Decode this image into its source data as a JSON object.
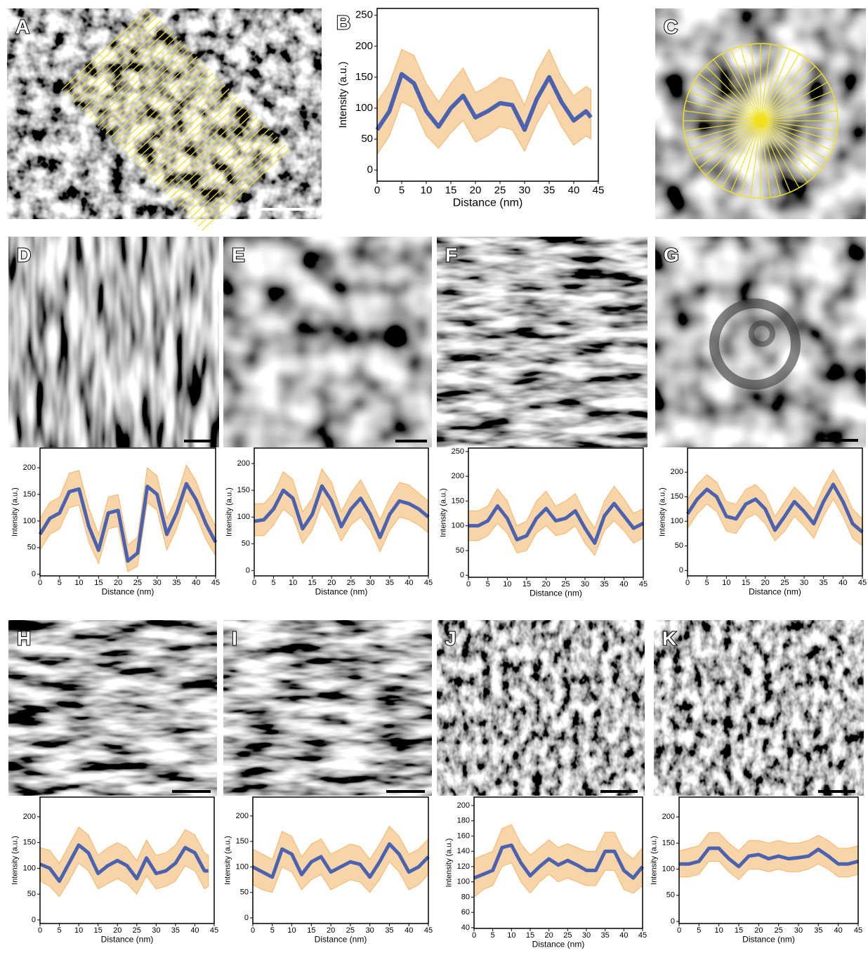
{
  "image_panels": [
    {
      "label": "A"
    },
    {
      "label": "C"
    },
    {
      "label": "D"
    },
    {
      "label": "E"
    },
    {
      "label": "F"
    },
    {
      "label": "G"
    },
    {
      "label": "H"
    },
    {
      "label": "I"
    },
    {
      "label": "J"
    },
    {
      "label": "K"
    }
  ],
  "chart_data": [
    {
      "type": "line",
      "panel": "B",
      "xlabel": "Distance (nm)",
      "ylabel": "Intensity (a.u.)",
      "x": [
        0,
        2.5,
        5,
        7.5,
        10,
        12.5,
        15,
        17.5,
        20,
        22.5,
        25,
        27.5,
        30,
        32.5,
        35,
        37.5,
        40,
        42.5,
        43.5
      ],
      "xlim": [
        0,
        45
      ],
      "xticks": [
        0,
        5,
        10,
        15,
        20,
        25,
        30,
        35,
        40,
        45
      ],
      "ylim": [
        -18,
        261
      ],
      "yticks": [
        0,
        50,
        100,
        150,
        200,
        250
      ],
      "series": [
        {
          "color": "#4a62b0",
          "values": [
            65,
            95,
            155,
            140,
            95,
            70,
            100,
            120,
            85,
            95,
            108,
            105,
            65,
            115,
            150,
            110,
            80,
            95,
            85
          ]
        }
      ],
      "band": {
        "color": "#f0a040",
        "lower": [
          25,
          55,
          110,
          100,
          55,
          35,
          60,
          80,
          45,
          55,
          70,
          65,
          30,
          75,
          110,
          70,
          40,
          55,
          50
        ],
        "upper": [
          110,
          140,
          195,
          185,
          140,
          110,
          140,
          165,
          125,
          135,
          150,
          145,
          105,
          160,
          195,
          150,
          120,
          135,
          130
        ]
      }
    },
    {
      "type": "line",
      "xlabel": "Distance (nm)",
      "ylabel": "Intensity (a.u.)",
      "x": [
        0,
        2.5,
        5,
        7.5,
        10,
        12.5,
        15,
        17.5,
        20,
        22.5,
        25,
        27.5,
        30,
        32.5,
        35,
        37.5,
        40,
        42.5,
        45
      ],
      "xlim": [
        0,
        45
      ],
      "xticks": [
        0,
        5,
        10,
        15,
        20,
        25,
        30,
        35,
        40,
        45
      ],
      "ylim": [
        -3,
        237
      ],
      "yticks": [
        0,
        50,
        100,
        150,
        200
      ],
      "series": [
        {
          "color": "#4a62b0",
          "values": [
            75,
            105,
            115,
            155,
            160,
            90,
            45,
            115,
            120,
            25,
            40,
            165,
            150,
            75,
            115,
            170,
            140,
            95,
            60
          ]
        }
      ],
      "band": {
        "color": "#f0a040",
        "lower": [
          45,
          75,
          85,
          125,
          130,
          60,
          20,
          85,
          90,
          5,
          15,
          135,
          120,
          45,
          85,
          140,
          110,
          65,
          35
        ],
        "upper": [
          105,
          135,
          145,
          190,
          195,
          125,
          75,
          145,
          150,
          55,
          70,
          200,
          185,
          105,
          145,
          205,
          175,
          125,
          90
        ]
      }
    },
    {
      "type": "line",
      "xlabel": "Distance (nm)",
      "ylabel": "Intensity (a.u.)",
      "x": [
        0,
        2.5,
        5,
        7.5,
        10,
        12.5,
        15,
        17.5,
        20,
        22.5,
        25,
        27.5,
        30,
        32.5,
        35,
        37.5,
        40,
        42.5,
        45
      ],
      "xlim": [
        0,
        45
      ],
      "xticks": [
        0,
        5,
        10,
        15,
        20,
        25,
        30,
        35,
        40,
        45
      ],
      "ylim": [
        -10,
        229
      ],
      "yticks": [
        0,
        50,
        100,
        150,
        200
      ],
      "series": [
        {
          "color": "#4a62b0",
          "values": [
            92,
            95,
            115,
            150,
            135,
            78,
            105,
            158,
            130,
            82,
            115,
            135,
            105,
            62,
            105,
            130,
            125,
            115,
            100
          ]
        }
      ],
      "band": {
        "color": "#f0a040",
        "lower": [
          65,
          65,
          85,
          115,
          100,
          50,
          75,
          125,
          95,
          55,
          85,
          100,
          75,
          35,
          75,
          100,
          95,
          85,
          70
        ],
        "upper": [
          125,
          125,
          145,
          185,
          170,
          110,
          135,
          190,
          165,
          110,
          145,
          170,
          135,
          95,
          135,
          165,
          160,
          145,
          130
        ]
      }
    },
    {
      "type": "line",
      "xlabel": "Distance (nm)",
      "ylabel": "Intensity (a.u.)",
      "x": [
        0,
        2.5,
        5,
        7.5,
        10,
        12.5,
        15,
        17.5,
        20,
        22.5,
        25,
        27.5,
        30,
        32.5,
        35,
        37.5,
        40,
        42.5,
        45
      ],
      "xlim": [
        0,
        45
      ],
      "xticks": [
        0,
        5,
        10,
        15,
        20,
        25,
        30,
        35,
        40,
        45
      ],
      "ylim": [
        -4,
        257
      ],
      "yticks": [
        0,
        50,
        100,
        150,
        200,
        250
      ],
      "series": [
        {
          "color": "#4a62b0",
          "values": [
            100,
            100,
            110,
            140,
            115,
            72,
            80,
            115,
            135,
            110,
            115,
            130,
            95,
            65,
            120,
            145,
            120,
            95,
            105
          ]
        }
      ],
      "band": {
        "color": "#f0a040",
        "lower": [
          70,
          70,
          80,
          105,
          85,
          45,
          50,
          85,
          100,
          80,
          85,
          100,
          65,
          40,
          90,
          110,
          90,
          65,
          75
        ],
        "upper": [
          130,
          130,
          140,
          175,
          150,
          100,
          110,
          150,
          170,
          140,
          150,
          165,
          125,
          95,
          150,
          180,
          155,
          125,
          135
        ]
      }
    },
    {
      "type": "line",
      "xlabel": "Distance (nm)",
      "ylabel": "Intensity (a.u.)",
      "x": [
        0,
        2.5,
        5,
        7.5,
        10,
        12.5,
        15,
        17.5,
        20,
        22.5,
        25,
        27.5,
        30,
        32.5,
        35,
        37.5,
        40,
        42.5,
        45
      ],
      "xlim": [
        0,
        45
      ],
      "xticks": [
        0,
        5,
        10,
        15,
        20,
        25,
        30,
        35,
        40,
        45
      ],
      "ylim": [
        -11,
        249
      ],
      "yticks": [
        0,
        50,
        100,
        150,
        200
      ],
      "series": [
        {
          "color": "#4a62b0",
          "values": [
            115,
            145,
            165,
            150,
            110,
            105,
            135,
            145,
            125,
            82,
            110,
            140,
            120,
            95,
            140,
            175,
            140,
            95,
            78
          ]
        }
      ],
      "band": {
        "color": "#f0a040",
        "lower": [
          85,
          115,
          135,
          120,
          80,
          75,
          105,
          115,
          95,
          60,
          80,
          110,
          90,
          65,
          110,
          145,
          110,
          65,
          50
        ],
        "upper": [
          145,
          175,
          195,
          180,
          140,
          135,
          165,
          175,
          155,
          110,
          140,
          170,
          150,
          125,
          170,
          205,
          170,
          125,
          105
        ]
      }
    },
    {
      "type": "line",
      "xlabel": "Distance (nm)",
      "ylabel": "Intensity (a.u.)",
      "x": [
        0,
        2.5,
        5,
        7.5,
        10,
        12.5,
        15,
        17.5,
        20,
        22.5,
        25,
        27.5,
        30,
        32.5,
        35,
        37.5,
        40,
        42.5,
        43.5
      ],
      "xlim": [
        0,
        45
      ],
      "xticks": [
        0,
        5,
        10,
        15,
        20,
        25,
        30,
        35,
        40,
        45
      ],
      "ylim": [
        -7,
        238
      ],
      "yticks": [
        0,
        50,
        100,
        150,
        200
      ],
      "series": [
        {
          "color": "#4a62b0",
          "values": [
            108,
            100,
            75,
            110,
            145,
            130,
            90,
            105,
            115,
            105,
            80,
            120,
            90,
            95,
            110,
            140,
            130,
            95,
            95
          ]
        }
      ],
      "band": {
        "color": "#f0a040",
        "lower": [
          75,
          65,
          45,
          75,
          110,
          95,
          60,
          70,
          80,
          70,
          50,
          85,
          60,
          65,
          75,
          105,
          95,
          60,
          65
        ],
        "upper": [
          140,
          135,
          110,
          145,
          180,
          165,
          125,
          140,
          150,
          140,
          115,
          155,
          125,
          130,
          145,
          175,
          165,
          130,
          125
        ]
      }
    },
    {
      "type": "line",
      "xlabel": "Distance (nm)",
      "ylabel": "Intensity (a.u.)",
      "x": [
        0,
        2.5,
        5,
        7.5,
        10,
        12.5,
        15,
        17.5,
        20,
        22.5,
        25,
        27.5,
        30,
        32.5,
        35,
        37.5,
        40,
        42.5,
        45
      ],
      "xlim": [
        0,
        45
      ],
      "xticks": [
        0,
        5,
        10,
        15,
        20,
        25,
        30,
        35,
        40,
        45
      ],
      "ylim": [
        -11,
        237
      ],
      "yticks": [
        0,
        50,
        100,
        150,
        200
      ],
      "series": [
        {
          "color": "#4a62b0",
          "values": [
            100,
            90,
            80,
            135,
            125,
            85,
            110,
            120,
            90,
            100,
            110,
            105,
            80,
            110,
            145,
            125,
            90,
            100,
            120
          ]
        }
      ],
      "band": {
        "color": "#f0a040",
        "lower": [
          65,
          55,
          50,
          100,
          90,
          55,
          75,
          85,
          55,
          65,
          75,
          70,
          50,
          75,
          110,
          90,
          55,
          65,
          85
        ],
        "upper": [
          135,
          125,
          115,
          170,
          160,
          120,
          145,
          155,
          125,
          135,
          145,
          140,
          115,
          145,
          180,
          160,
          125,
          135,
          155
        ]
      }
    },
    {
      "type": "line",
      "xlabel": "Distance (nm)",
      "ylabel": "Intensity (a.u.)",
      "x": [
        0,
        2.5,
        5,
        7.5,
        10,
        12.5,
        15,
        17.5,
        20,
        22.5,
        25,
        27.5,
        30,
        32.5,
        35,
        37.5,
        40,
        42.5,
        45
      ],
      "xlim": [
        0,
        45
      ],
      "xticks": [
        0,
        5,
        10,
        15,
        20,
        25,
        30,
        35,
        40,
        45
      ],
      "ylim": [
        39,
        211
      ],
      "yticks": [
        40,
        60,
        80,
        100,
        120,
        140,
        160,
        180,
        200
      ],
      "series": [
        {
          "color": "#4a62b0",
          "values": [
            105,
            110,
            115,
            145,
            148,
            125,
            108,
            120,
            130,
            122,
            128,
            122,
            115,
            115,
            140,
            140,
            115,
            105,
            120
          ]
        }
      ],
      "band": {
        "color": "#f0a040",
        "lower": [
          80,
          90,
          95,
          120,
          125,
          100,
          85,
          100,
          110,
          100,
          105,
          100,
          95,
          95,
          115,
          115,
          90,
          85,
          95
        ],
        "upper": [
          130,
          135,
          140,
          170,
          175,
          150,
          135,
          145,
          155,
          145,
          150,
          145,
          140,
          140,
          165,
          165,
          140,
          130,
          145
        ]
      }
    },
    {
      "type": "line",
      "xlabel": "Distance (nm)",
      "ylabel": "Intensity (a.u.)",
      "x": [
        0,
        2.5,
        5,
        7.5,
        10,
        12.5,
        15,
        17.5,
        20,
        22.5,
        25,
        27.5,
        30,
        32.5,
        35,
        37.5,
        40,
        42.5,
        45
      ],
      "xlim": [
        0,
        45
      ],
      "xticks": [
        0,
        5,
        10,
        15,
        20,
        25,
        30,
        35,
        40,
        45
      ],
      "ylim": [
        -4,
        238
      ],
      "yticks": [
        0,
        50,
        100,
        150,
        200
      ],
      "series": [
        {
          "color": "#4a62b0",
          "values": [
            110,
            110,
            115,
            140,
            140,
            120,
            105,
            125,
            128,
            120,
            125,
            120,
            122,
            125,
            138,
            125,
            110,
            110,
            115
          ]
        }
      ],
      "band": {
        "color": "#f0a040",
        "lower": [
          85,
          85,
          90,
          115,
          115,
          95,
          80,
          100,
          100,
          95,
          100,
          95,
          95,
          100,
          110,
          100,
          85,
          85,
          90
        ],
        "upper": [
          135,
          140,
          145,
          170,
          170,
          150,
          135,
          155,
          155,
          150,
          155,
          150,
          150,
          155,
          165,
          155,
          140,
          140,
          145
        ]
      }
    }
  ]
}
